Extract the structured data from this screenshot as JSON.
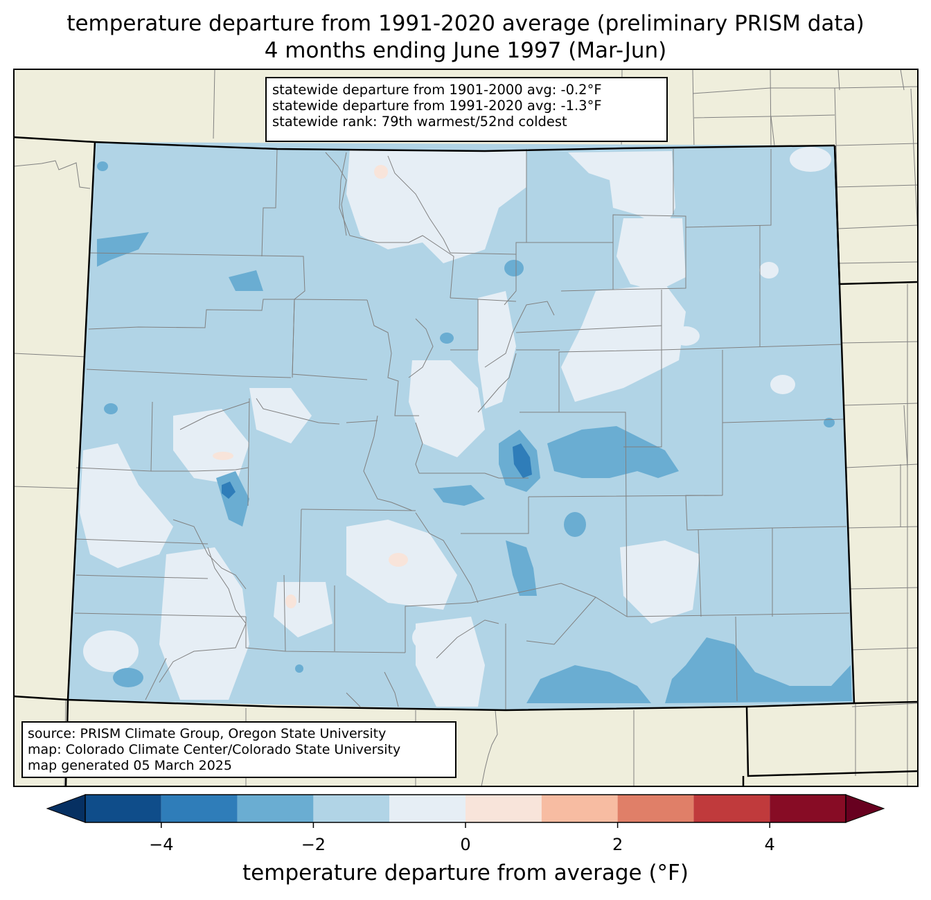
{
  "title": {
    "line1": "temperature departure from 1991-2020 average (preliminary PRISM data)",
    "line2": "4 months ending June 1997 (Mar-Jun)"
  },
  "stats": {
    "line1": "statewide departure from 1901-2000 avg: -0.2°F",
    "line2": "statewide departure from 1991-2020 avg: -1.3°F",
    "line3": "statewide rank: 79th warmest/52nd coldest"
  },
  "source": {
    "line1": "source: PRISM Climate Group, Oregon State University",
    "line2": "map: Colorado Climate Center/Colorado State University",
    "line3": "map generated 05 March 2025"
  },
  "colorbar": {
    "label": "temperature departure from average (°F)",
    "ticks": [
      "−4",
      "−2",
      "0",
      "2",
      "4"
    ],
    "tick_values": [
      -4,
      -2,
      0,
      2,
      4
    ],
    "bins": [
      -5,
      -4,
      -3,
      -2,
      -1,
      0,
      1,
      2,
      3,
      4,
      5
    ],
    "colors": [
      "#0f4d8a",
      "#2f7db9",
      "#6aadd2",
      "#b1d4e6",
      "#e6eef5",
      "#f8e4da",
      "#f7bca2",
      "#e07f68",
      "#c03a3c",
      "#870c25"
    ],
    "under_color": "#063062",
    "over_color": "#67001f"
  },
  "colors": {
    "land": "#efeedc",
    "state_border": "#000000",
    "county_border": "#808080"
  }
}
